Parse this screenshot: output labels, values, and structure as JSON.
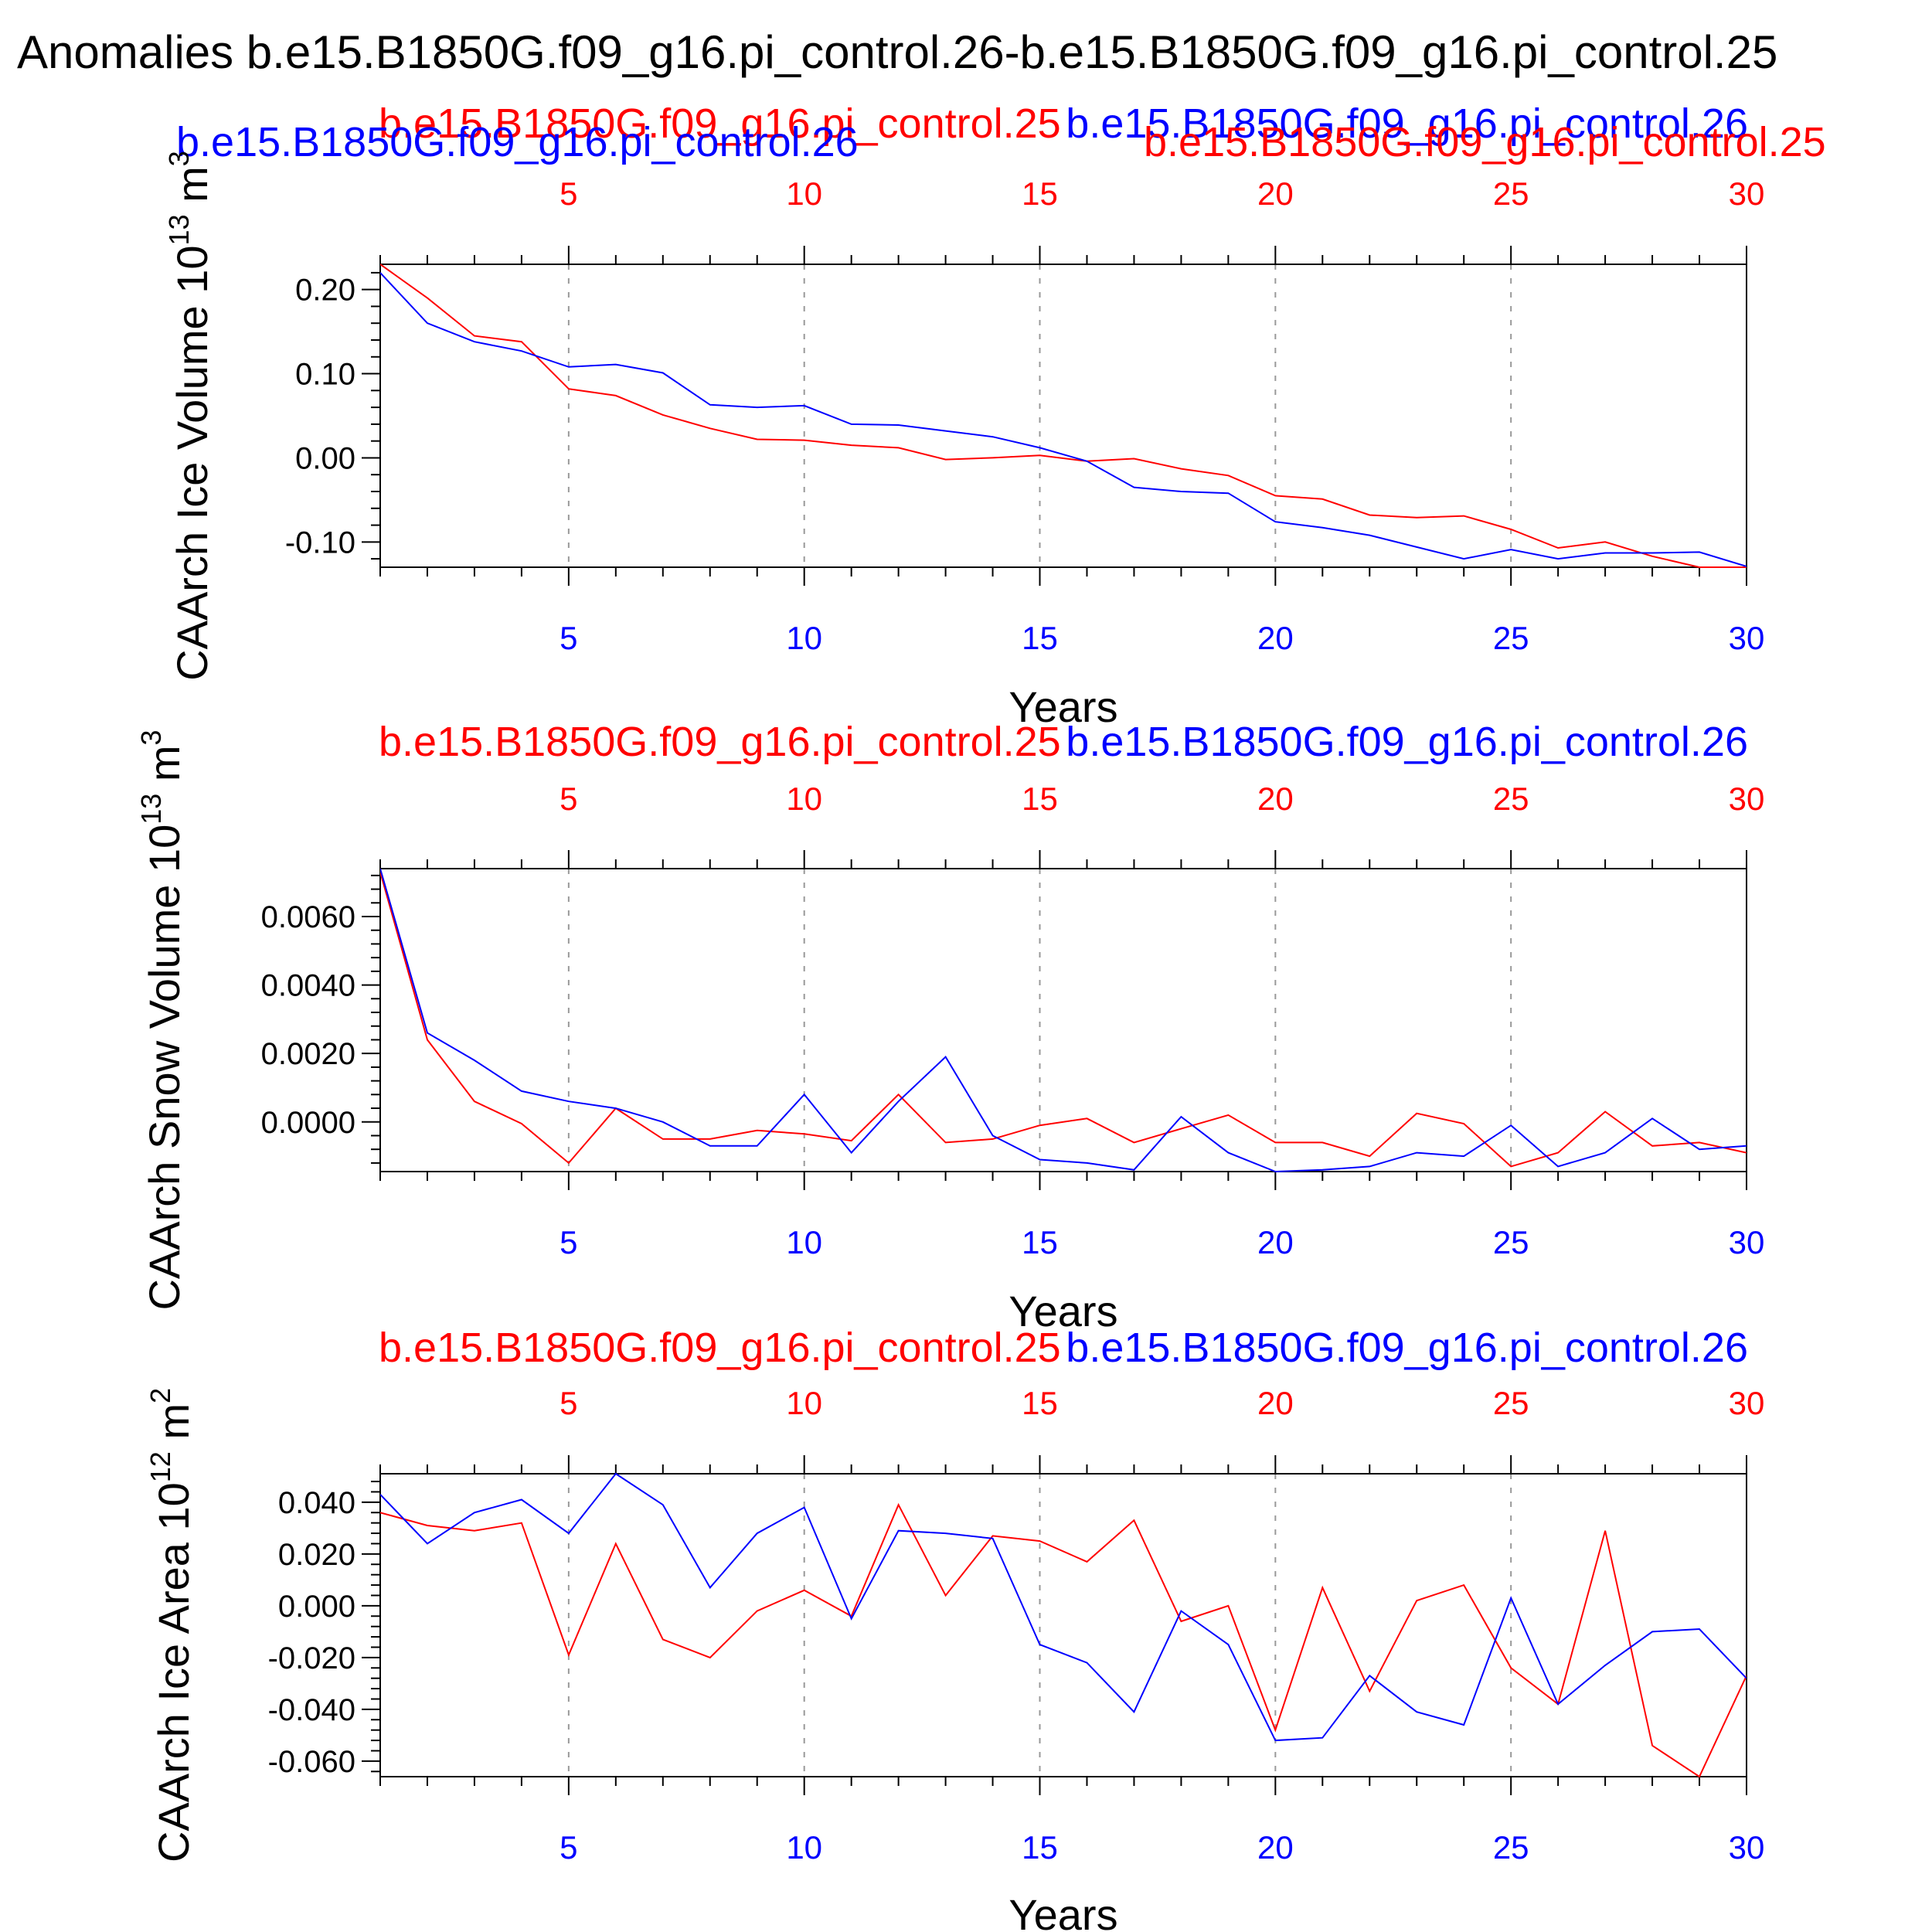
{
  "figure": {
    "title": "Anomalies b.e15.B1850G.f09_g16.pi_control.26-b.e15.B1850G.f09_g16.pi_control.25"
  },
  "colors": {
    "series_a": "#ff0000",
    "series_b": "#0000ff",
    "axis": "#000000",
    "grid": "#999999"
  },
  "chart_data": [
    {
      "type": "line",
      "ylabel": "CAArch Ice Volume 10",
      "ylabel_exp": "13",
      "ylabel_unit": " m",
      "ylabel_unit_exp": "3",
      "xlabel": "Years",
      "xlim": [
        1,
        30
      ],
      "ylim": [
        -0.13,
        0.23
      ],
      "yticks": [
        0.2,
        0.1,
        0.0,
        -0.1
      ],
      "ytick_labels": [
        "0.20",
        "0.10",
        "0.00",
        "-0.10"
      ],
      "xticks": [
        5,
        10,
        15,
        20,
        25,
        30
      ],
      "xtick_labels": [
        "5",
        "10",
        "15",
        "20",
        "25",
        "30"
      ],
      "legend_left": "b.e15.B1850G.f09_g16.pi_control.25",
      "legend_right": "b.e15.B1850G.f09_g16.pi_control.26",
      "legend_extra_left": "b.e15.B1850G.f09_g16.pi_control.26",
      "legend_extra_right": "b.e15.B1850G.f09_g16.pi_control.25",
      "x": [
        1,
        2,
        3,
        4,
        5,
        6,
        7,
        8,
        9,
        10,
        11,
        12,
        13,
        14,
        15,
        16,
        17,
        18,
        19,
        20,
        21,
        22,
        23,
        24,
        25,
        26,
        27,
        28,
        29,
        30
      ],
      "series": [
        {
          "name": "b.e15.B1850G.f09_g16.pi_control.25",
          "color": "#ff0000",
          "values": [
            0.23,
            0.19,
            0.145,
            0.138,
            0.082,
            0.074,
            0.051,
            0.035,
            0.022,
            0.021,
            0.015,
            0.012,
            -0.002,
            0.0,
            0.003,
            -0.004,
            -0.001,
            -0.013,
            -0.021,
            -0.045,
            -0.049,
            -0.068,
            -0.071,
            -0.069,
            -0.085,
            -0.107,
            -0.1,
            -0.117,
            -0.13,
            -0.13
          ]
        },
        {
          "name": "b.e15.B1850G.f09_g16.pi_control.26",
          "color": "#0000ff",
          "values": [
            0.22,
            0.16,
            0.138,
            0.127,
            0.108,
            0.111,
            0.101,
            0.063,
            0.06,
            0.062,
            0.04,
            0.039,
            0.032,
            0.025,
            0.012,
            -0.004,
            -0.035,
            -0.04,
            -0.042,
            -0.076,
            -0.083,
            -0.092,
            -0.106,
            -0.12,
            -0.109,
            -0.12,
            -0.113,
            -0.113,
            -0.112,
            -0.129
          ]
        }
      ]
    },
    {
      "type": "line",
      "ylabel": "CAArch Snow Volume 10",
      "ylabel_exp": "13",
      "ylabel_unit": " m",
      "ylabel_unit_exp": "3",
      "xlabel": "Years",
      "xlim": [
        1,
        30
      ],
      "ylim": [
        -0.00145,
        0.0074
      ],
      "yticks": [
        0.006,
        0.004,
        0.002,
        0.0
      ],
      "ytick_labels": [
        "0.0060",
        "0.0040",
        "0.0020",
        "0.0000"
      ],
      "xticks": [
        5,
        10,
        15,
        20,
        25,
        30
      ],
      "xtick_labels": [
        "5",
        "10",
        "15",
        "20",
        "25",
        "30"
      ],
      "legend_left": "b.e15.B1850G.f09_g16.pi_control.25",
      "legend_right": "b.e15.B1850G.f09_g16.pi_control.26",
      "x": [
        1,
        2,
        3,
        4,
        5,
        6,
        7,
        8,
        9,
        10,
        11,
        12,
        13,
        14,
        15,
        16,
        17,
        18,
        19,
        20,
        21,
        22,
        23,
        24,
        25,
        26,
        27,
        28,
        29,
        30
      ],
      "series": [
        {
          "name": "b.e15.B1850G.f09_g16.pi_control.25",
          "color": "#ff0000",
          "values": [
            0.0073,
            0.0024,
            0.0006,
            -5e-05,
            -0.0012,
            0.0004,
            -0.0005,
            -0.0005,
            -0.00025,
            -0.00035,
            -0.00055,
            0.0008,
            -0.0006,
            -0.0005,
            -0.0001,
            0.0001,
            -0.0006,
            -0.0002,
            0.0002,
            -0.0006,
            -0.0006,
            -0.001,
            0.00025,
            -5e-05,
            -0.0013,
            -0.0009,
            0.0003,
            -0.0007,
            -0.0006,
            -0.0009
          ]
        },
        {
          "name": "b.e15.B1850G.f09_g16.pi_control.26",
          "color": "#0000ff",
          "values": [
            0.0074,
            0.0026,
            0.0018,
            0.0009,
            0.0006,
            0.0004,
            0.0,
            -0.0007,
            -0.0007,
            0.0008,
            -0.0009,
            0.0006,
            0.0019,
            -0.0004,
            -0.0011,
            -0.0012,
            -0.0014,
            0.00015,
            -0.0009,
            -0.00145,
            -0.0014,
            -0.0013,
            -0.0009,
            -0.001,
            -0.0001,
            -0.0013,
            -0.0009,
            0.0001,
            -0.0008,
            -0.0007
          ]
        }
      ]
    },
    {
      "type": "line",
      "ylabel": "CAArch Ice Area 10",
      "ylabel_exp": "12",
      "ylabel_unit": " m",
      "ylabel_unit_exp": "2",
      "xlabel": "Years",
      "xlim": [
        1,
        30
      ],
      "ylim": [
        -0.066,
        0.051
      ],
      "yticks": [
        0.04,
        0.02,
        0.0,
        -0.02,
        -0.04,
        -0.06
      ],
      "ytick_labels": [
        "0.040",
        "0.020",
        "0.000",
        "-0.020",
        "-0.040",
        "-0.060"
      ],
      "xticks": [
        5,
        10,
        15,
        20,
        25,
        30
      ],
      "xtick_labels": [
        "5",
        "10",
        "15",
        "20",
        "25",
        "30"
      ],
      "legend_left": "b.e15.B1850G.f09_g16.pi_control.25",
      "legend_right": "b.e15.B1850G.f09_g16.pi_control.26",
      "x": [
        1,
        2,
        3,
        4,
        5,
        6,
        7,
        8,
        9,
        10,
        11,
        12,
        13,
        14,
        15,
        16,
        17,
        18,
        19,
        20,
        21,
        22,
        23,
        24,
        25,
        26,
        27,
        28,
        29,
        30
      ],
      "series": [
        {
          "name": "b.e15.B1850G.f09_g16.pi_control.25",
          "color": "#ff0000",
          "values": [
            0.036,
            0.031,
            0.029,
            0.032,
            -0.019,
            0.024,
            -0.013,
            -0.02,
            -0.002,
            0.006,
            -0.004,
            0.039,
            0.004,
            0.027,
            0.025,
            0.017,
            0.033,
            -0.006,
            0.0,
            -0.048,
            0.007,
            -0.033,
            0.002,
            0.008,
            -0.024,
            -0.038,
            0.029,
            -0.054,
            -0.066,
            -0.027
          ]
        },
        {
          "name": "b.e15.B1850G.f09_g16.pi_control.26",
          "color": "#0000ff",
          "values": [
            0.043,
            0.024,
            0.036,
            0.041,
            0.028,
            0.051,
            0.039,
            0.007,
            0.028,
            0.038,
            -0.005,
            0.029,
            0.028,
            0.026,
            -0.015,
            -0.022,
            -0.041,
            -0.002,
            -0.015,
            -0.052,
            -0.051,
            -0.027,
            -0.041,
            -0.046,
            0.003,
            -0.038,
            -0.023,
            -0.01,
            -0.009,
            -0.028
          ]
        }
      ]
    }
  ]
}
